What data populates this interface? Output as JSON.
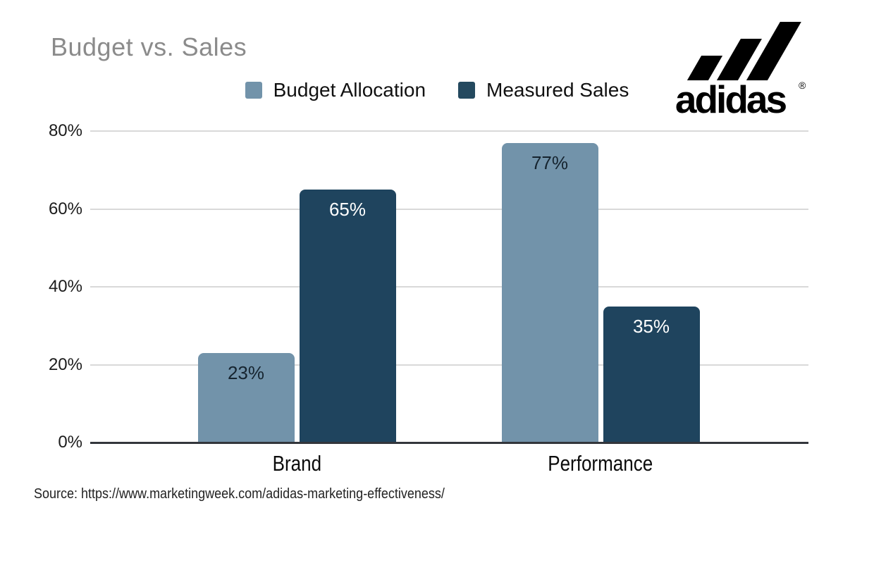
{
  "title": {
    "text": "Budget vs. Sales",
    "color": "#8b8b8b"
  },
  "logo": {
    "brand": "adidas",
    "registered_mark": "®",
    "color": "#000000"
  },
  "legend": [
    {
      "label": "Budget Allocation",
      "color": "#7293aa"
    },
    {
      "label": "Measured Sales",
      "color": "#24495f"
    }
  ],
  "chart_data": {
    "type": "bar",
    "title": "Budget vs. Sales",
    "categories": [
      "Brand",
      "Performance"
    ],
    "series": [
      {
        "name": "Budget Allocation",
        "values": [
          23,
          77
        ],
        "color": "#7293aa",
        "label_color": "#16242f"
      },
      {
        "name": "Measured Sales",
        "values": [
          65,
          35
        ],
        "color": "#1f445e",
        "label_color": "#ffffff"
      }
    ],
    "value_labels": [
      [
        "23%",
        "77%"
      ],
      [
        "65%",
        "35%"
      ]
    ],
    "xlabel": "",
    "ylabel": "",
    "ylim": [
      0,
      80
    ],
    "yticks": [
      "0%",
      "20%",
      "40%",
      "60%",
      "80%"
    ],
    "grid": true,
    "legend_position": "top-center",
    "grid_color": "#d9d9d9",
    "axis_color": "#33363c"
  },
  "source": {
    "text": "Source: https://www.marketingweek.com/adidas-marketing-effectiveness/"
  }
}
